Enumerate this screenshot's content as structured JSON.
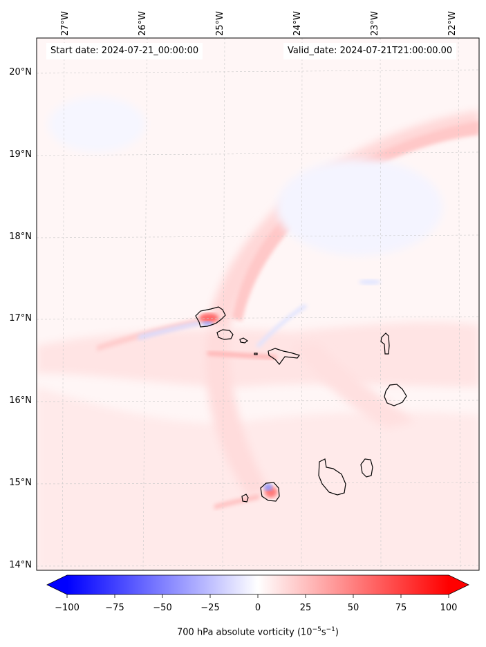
{
  "map": {
    "title_left": "Start date: 2024-07-21_00:00:00",
    "title_right": "Valid_date: 2024-07-21T21:00:00.00",
    "field": "700 hPa absolute vorticity",
    "units_label": "700 hPa absolute vorticity (10",
    "units_exp1": "−5",
    "units_mid": "s",
    "units_exp2": "−1",
    "units_close": ")",
    "lon_labels": [
      "27°W",
      "26°W",
      "25°W",
      "24°W",
      "23°W",
      "22°W"
    ],
    "lat_labels": [
      "20°N",
      "19°N",
      "18°N",
      "17°N",
      "16°N",
      "15°N",
      "14°N"
    ],
    "extent": {
      "lon_min": -27.35,
      "lon_max": -21.85,
      "lat_min": 13.95,
      "lat_max": 20.4
    },
    "islands": [
      "Santo Antão",
      "São Vicente",
      "Santa Luzia",
      "São Nicolau",
      "Sal",
      "Boa Vista",
      "Maio",
      "Santiago",
      "Fogo",
      "Brava"
    ]
  },
  "colorbar": {
    "min": -100,
    "max": 100,
    "ticks": [
      "−100",
      "−75",
      "−50",
      "−25",
      "0",
      "25",
      "50",
      "75",
      "100"
    ],
    "tick_values": [
      -100,
      -75,
      -50,
      -25,
      0,
      25,
      50,
      75,
      100
    ],
    "colormap": "bwr",
    "color_neg": "#0000ff",
    "color_mid": "#ffffff",
    "color_pos": "#ff0000",
    "extend": "both"
  }
}
